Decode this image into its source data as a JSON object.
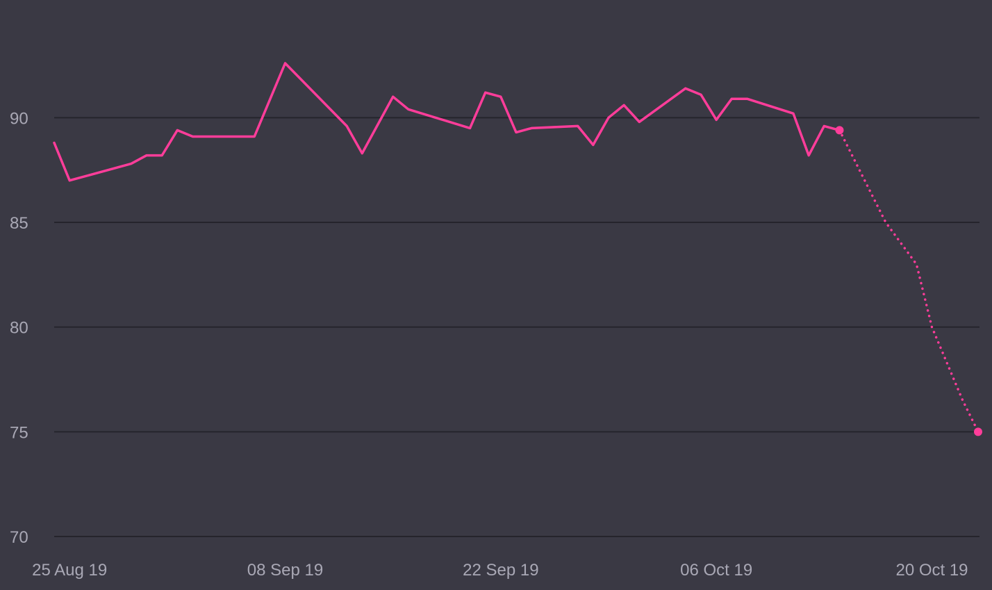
{
  "colors": {
    "background": "#3a3944",
    "grid": "#25242c",
    "tick_text": "#a9a8b5",
    "series": "#ff3d9a"
  },
  "chart_data": {
    "type": "line",
    "title": "",
    "xlabel": "",
    "ylabel": "",
    "ylim": [
      70,
      92.6
    ],
    "xlim": [
      "2019-08-24",
      "2019-10-23"
    ],
    "grid": true,
    "legend": "none",
    "y_ticks": [
      {
        "value": 70,
        "label": "70"
      },
      {
        "value": 75,
        "label": "75"
      },
      {
        "value": 80,
        "label": "80"
      },
      {
        "value": 85,
        "label": "85"
      },
      {
        "value": 90,
        "label": "90"
      }
    ],
    "x_ticks": [
      {
        "date": "2019-08-25",
        "label": "25 Aug 19"
      },
      {
        "date": "2019-09-08",
        "label": "08 Sep 19"
      },
      {
        "date": "2019-09-22",
        "label": "22 Sep 19"
      },
      {
        "date": "2019-10-06",
        "label": "06 Oct 19"
      },
      {
        "date": "2019-10-20",
        "label": "20 Oct 19"
      }
    ],
    "series": [
      {
        "style": "solid",
        "points": [
          {
            "x": "2019-08-24",
            "y": 88.8
          },
          {
            "x": "2019-08-25",
            "y": 87.0
          },
          {
            "x": "2019-08-29",
            "y": 87.8
          },
          {
            "x": "2019-08-30",
            "y": 88.2
          },
          {
            "x": "2019-08-31",
            "y": 88.2
          },
          {
            "x": "2019-09-01",
            "y": 89.4
          },
          {
            "x": "2019-09-02",
            "y": 89.1
          },
          {
            "x": "2019-09-06",
            "y": 89.1
          },
          {
            "x": "2019-09-08",
            "y": 92.6
          },
          {
            "x": "2019-09-12",
            "y": 89.6
          },
          {
            "x": "2019-09-13",
            "y": 88.3
          },
          {
            "x": "2019-09-15",
            "y": 91.0
          },
          {
            "x": "2019-09-16",
            "y": 90.4
          },
          {
            "x": "2019-09-20",
            "y": 89.5
          },
          {
            "x": "2019-09-21",
            "y": 91.2
          },
          {
            "x": "2019-09-22",
            "y": 91.0
          },
          {
            "x": "2019-09-23",
            "y": 89.3
          },
          {
            "x": "2019-09-24",
            "y": 89.5
          },
          {
            "x": "2019-09-27",
            "y": 89.6
          },
          {
            "x": "2019-09-28",
            "y": 88.7
          },
          {
            "x": "2019-09-29",
            "y": 90.0
          },
          {
            "x": "2019-09-30",
            "y": 90.6
          },
          {
            "x": "2019-10-01",
            "y": 89.8
          },
          {
            "x": "2019-10-04",
            "y": 91.4
          },
          {
            "x": "2019-10-05",
            "y": 91.1
          },
          {
            "x": "2019-10-06",
            "y": 89.9
          },
          {
            "x": "2019-10-07",
            "y": 90.9
          },
          {
            "x": "2019-10-08",
            "y": 90.9
          },
          {
            "x": "2019-10-11",
            "y": 90.2
          },
          {
            "x": "2019-10-12",
            "y": 88.2
          },
          {
            "x": "2019-10-13",
            "y": 89.6
          },
          {
            "x": "2019-10-14",
            "y": 89.4
          }
        ],
        "end_marker": true
      },
      {
        "style": "dotted",
        "points": [
          {
            "x": "2019-10-14",
            "y": 89.4
          },
          {
            "x": "2019-10-17",
            "y": 85.0
          },
          {
            "x": "2019-10-19",
            "y": 83.0
          },
          {
            "x": "2019-10-20",
            "y": 80.0
          },
          {
            "x": "2019-10-22",
            "y": 76.5
          },
          {
            "x": "2019-10-23",
            "y": 75.0
          }
        ],
        "end_marker": true
      }
    ]
  }
}
